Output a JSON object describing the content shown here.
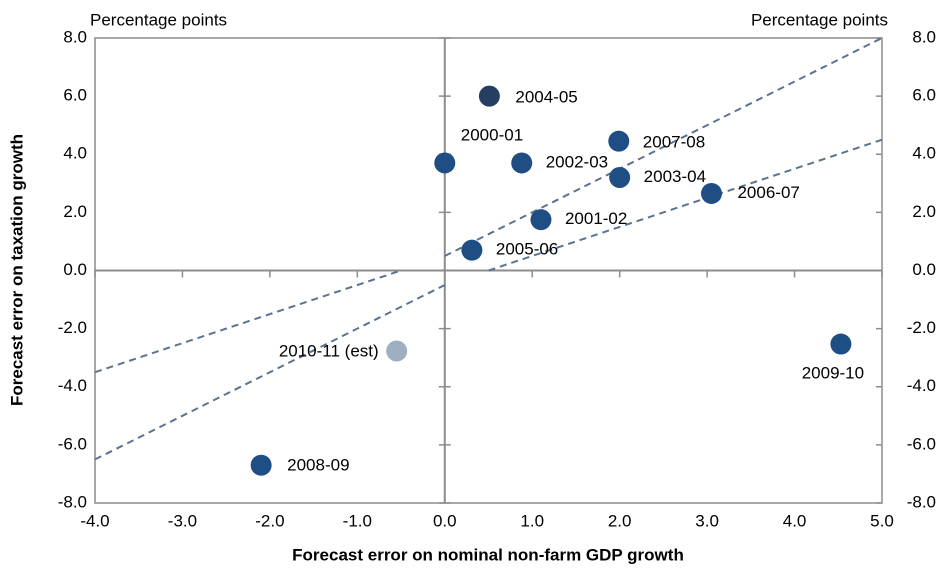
{
  "chart_data": {
    "type": "scatter",
    "x_label": "Forecast error on nominal non-farm GDP growth",
    "y_label": "Forecast error on taxation growth",
    "y_unit": "Percentage points",
    "y2_unit": "Percentage points",
    "x": [
      0.0,
      1.1,
      0.88,
      2.0,
      0.51,
      0.31,
      3.05,
      1.99,
      -2.1,
      4.53,
      -0.55
    ],
    "values": [
      3.7,
      1.75,
      3.7,
      3.2,
      6.0,
      0.7,
      2.65,
      4.45,
      -6.7,
      -2.53,
      -2.77
    ],
    "point_labels": [
      "2000-01",
      "2001-02",
      "2002-03",
      "2003-04",
      "2004-05",
      "2005-06",
      "2006-07",
      "2007-08",
      "2008-09",
      "2009-10",
      "2010-11 (est)"
    ],
    "colors": [
      "#1f4e85",
      "#1f4e85",
      "#1f4e85",
      "#1f4e85",
      "#243f60",
      "#1f4e85",
      "#1f4e85",
      "#1f4e85",
      "#1f4e85",
      "#1f4e85",
      "#9eafc1"
    ],
    "reference_lines": [
      {
        "x": [
          -4.0,
          -0.5
        ],
        "y": [
          -3.5,
          0.0
        ]
      },
      {
        "x": [
          -4.0,
          0.0
        ],
        "y": [
          -6.5,
          -0.5
        ]
      },
      {
        "x": [
          0.0,
          5.0
        ],
        "y": [
          0.5,
          8.0
        ]
      },
      {
        "x": [
          0.5,
          5.0
        ],
        "y": [
          0.0,
          4.5
        ]
      }
    ],
    "reference_line_color": "#5a7492",
    "xlim": [
      -4.0,
      5.0
    ],
    "xticks": [
      {
        "value": -4,
        "label": "-4.0"
      },
      {
        "value": -3,
        "label": "-3.0"
      },
      {
        "value": -2,
        "label": "-2.0"
      },
      {
        "value": -1,
        "label": "-1.0"
      },
      {
        "value": 0,
        "label": "0.0"
      },
      {
        "value": 1,
        "label": "1.0"
      },
      {
        "value": 2,
        "label": "2.0"
      },
      {
        "value": 3,
        "label": "3.0"
      },
      {
        "value": 4,
        "label": "4.0"
      },
      {
        "value": 5,
        "label": "5.0"
      }
    ],
    "ylim": [
      -8.0,
      8.0
    ],
    "yticks": [
      {
        "value": -8,
        "label": "-8.0"
      },
      {
        "value": -6,
        "label": "-6.0"
      },
      {
        "value": -4,
        "label": "-4.0"
      },
      {
        "value": -2,
        "label": "-2.0"
      },
      {
        "value": 0,
        "label": "0.0"
      },
      {
        "value": 2,
        "label": "2.0"
      },
      {
        "value": 4,
        "label": "4.0"
      },
      {
        "value": 6,
        "label": "6.0"
      },
      {
        "value": 8,
        "label": "8.0"
      }
    ],
    "y2lim": [
      -8.0,
      8.0
    ],
    "y2ticks": [
      {
        "value": -8,
        "label": "-8.0"
      },
      {
        "value": -6,
        "label": "-6.0"
      },
      {
        "value": -4,
        "label": "-4.0"
      },
      {
        "value": -2,
        "label": "-2.0"
      },
      {
        "value": 0,
        "label": "0.0"
      },
      {
        "value": 2,
        "label": "2.0"
      },
      {
        "value": 4,
        "label": "4.0"
      },
      {
        "value": 6,
        "label": "6.0"
      },
      {
        "value": 8,
        "label": "8.0"
      }
    ],
    "grid": false
  }
}
